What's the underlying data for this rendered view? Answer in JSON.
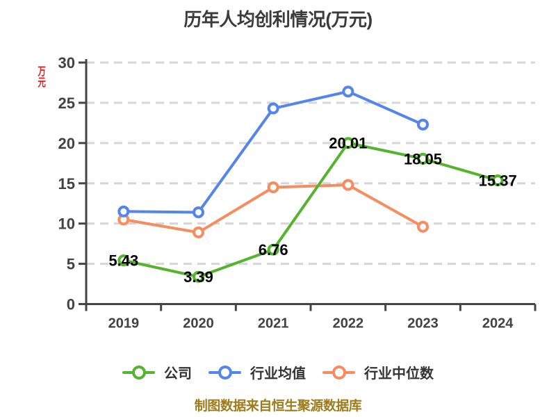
{
  "title": "历年人均创利情况(万元)",
  "y_axis_unit": "万元",
  "footer": "制图数据来自恒生聚源数据库",
  "colors": {
    "company": "#55B42E",
    "industry_avg": "#5585EC",
    "industry_median": "#F68D60",
    "title_text": "#3B3B3B",
    "axis": "#454545",
    "grid": "#D6D6D6",
    "unit_label": "#E31B1B",
    "footer_text": "#9E7C1C",
    "data_label": "#060606"
  },
  "legend": {
    "position": "bottom",
    "items": [
      {
        "label": "公司",
        "color": "#55B42E"
      },
      {
        "label": "行业均值",
        "color": "#5585EC"
      },
      {
        "label": "行业中位数",
        "color": "#F68D60"
      }
    ]
  },
  "chart_data": {
    "type": "line",
    "title": "历年人均创利情况(万元)",
    "categories": [
      "2019",
      "2020",
      "2021",
      "2022",
      "2023",
      "2024"
    ],
    "series": [
      {
        "name": "公司",
        "key": "company",
        "color": "#55B42E",
        "values": [
          5.43,
          3.39,
          6.76,
          20.01,
          18.05,
          15.37
        ],
        "labels": [
          "5.43",
          "3.39",
          "6.76",
          "20.01",
          "18.05",
          "15.37"
        ],
        "show_labels": true
      },
      {
        "name": "行业均值",
        "key": "industry-average",
        "color": "#5585EC",
        "values": [
          11.5,
          11.4,
          24.3,
          26.4,
          22.3,
          null
        ],
        "show_labels": false
      },
      {
        "name": "行业中位数",
        "key": "industry-median",
        "color": "#F68D60",
        "values": [
          10.5,
          8.9,
          14.5,
          14.8,
          9.6,
          null
        ],
        "show_labels": false
      }
    ],
    "xlabel": "",
    "ylabel": "万元",
    "ylim": [
      0,
      30
    ],
    "ytick_step": 5,
    "yticks": [
      "0",
      "5",
      "10",
      "15",
      "20",
      "25",
      "30"
    ],
    "grid": "horizontal-dashed",
    "legend_position": "bottom"
  }
}
